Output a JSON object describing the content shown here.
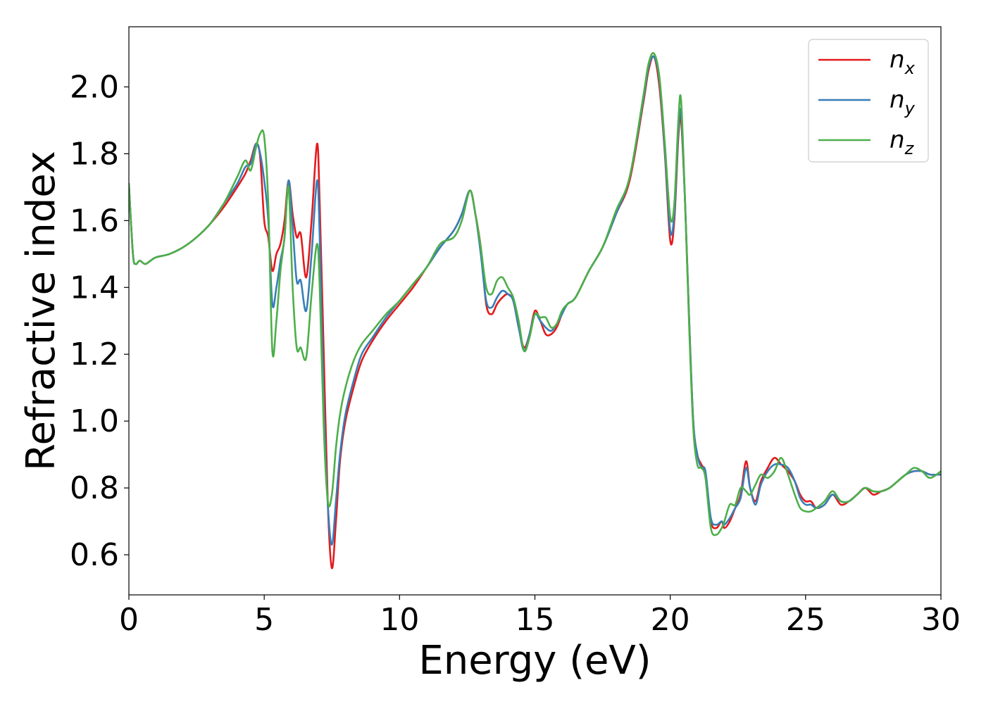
{
  "chart_data": {
    "type": "line",
    "xlabel": "Energy (eV)",
    "ylabel": "Refractive index",
    "xlim": [
      0,
      30
    ],
    "ylim": [
      0.48,
      2.18
    ],
    "xticks": [
      0,
      5,
      10,
      15,
      20,
      25,
      30
    ],
    "xtick_labels": [
      "0",
      "5",
      "10",
      "15",
      "20",
      "25",
      "30"
    ],
    "yticks": [
      0.6,
      0.8,
      1.0,
      1.2,
      1.4,
      1.6,
      1.8,
      2.0
    ],
    "ytick_labels": [
      "0.6",
      "0.8",
      "1.0",
      "1.2",
      "1.4",
      "1.6",
      "1.8",
      "2.0"
    ],
    "grid": false,
    "legend_position": "top-right",
    "series": [
      {
        "name": "n_x",
        "legend_base": "n",
        "legend_sub": "x",
        "color": "#e41a1c",
        "x": [
          0,
          0.15,
          0.25,
          0.4,
          0.6,
          0.8,
          1.0,
          1.5,
          2.0,
          2.5,
          3.0,
          3.5,
          4.0,
          4.3,
          4.5,
          4.7,
          4.85,
          5.0,
          5.15,
          5.3,
          5.45,
          5.6,
          5.75,
          5.9,
          6.05,
          6.2,
          6.35,
          6.55,
          6.75,
          6.95,
          7.05,
          7.2,
          7.35,
          7.5,
          7.65,
          7.8,
          8.0,
          8.3,
          8.6,
          9.0,
          9.5,
          10.0,
          10.5,
          11.0,
          11.5,
          12.0,
          12.3,
          12.6,
          12.8,
          13.0,
          13.2,
          13.4,
          13.6,
          13.8,
          14.0,
          14.2,
          14.4,
          14.6,
          14.8,
          15.0,
          15.2,
          15.4,
          15.6,
          15.8,
          16.0,
          16.2,
          16.5,
          17.0,
          17.5,
          18.0,
          18.5,
          19.0,
          19.2,
          19.4,
          19.6,
          19.8,
          20.0,
          20.15,
          20.3,
          20.4,
          20.55,
          20.7,
          20.85,
          21.0,
          21.15,
          21.3,
          21.5,
          21.7,
          21.9,
          22.0,
          22.2,
          22.4,
          22.6,
          22.8,
          22.95,
          23.15,
          23.35,
          23.6,
          23.85,
          24.1,
          24.35,
          24.6,
          24.8,
          25.0,
          25.2,
          25.4,
          25.7,
          26.0,
          26.3,
          26.6,
          26.9,
          27.2,
          27.5,
          27.8,
          28.1,
          28.4,
          28.7,
          29.0,
          29.3,
          29.6,
          30.0
        ],
        "y": [
          1.71,
          1.5,
          1.47,
          1.48,
          1.47,
          1.48,
          1.49,
          1.5,
          1.52,
          1.55,
          1.59,
          1.64,
          1.7,
          1.74,
          1.78,
          1.83,
          1.79,
          1.6,
          1.55,
          1.45,
          1.5,
          1.53,
          1.6,
          1.72,
          1.62,
          1.55,
          1.56,
          1.43,
          1.6,
          1.83,
          1.65,
          1.2,
          0.75,
          0.56,
          0.7,
          0.88,
          1.0,
          1.1,
          1.18,
          1.24,
          1.3,
          1.35,
          1.4,
          1.46,
          1.52,
          1.57,
          1.62,
          1.69,
          1.62,
          1.52,
          1.35,
          1.32,
          1.35,
          1.37,
          1.38,
          1.36,
          1.28,
          1.22,
          1.26,
          1.33,
          1.3,
          1.26,
          1.26,
          1.28,
          1.32,
          1.35,
          1.37,
          1.45,
          1.52,
          1.62,
          1.72,
          1.95,
          2.05,
          2.09,
          2.0,
          1.8,
          1.54,
          1.6,
          1.85,
          1.9,
          1.65,
          1.3,
          1.0,
          0.9,
          0.87,
          0.84,
          0.7,
          0.68,
          0.7,
          0.68,
          0.7,
          0.74,
          0.78,
          0.88,
          0.8,
          0.76,
          0.82,
          0.86,
          0.89,
          0.87,
          0.85,
          0.82,
          0.78,
          0.76,
          0.76,
          0.74,
          0.75,
          0.78,
          0.75,
          0.76,
          0.78,
          0.8,
          0.78,
          0.79,
          0.8,
          0.82,
          0.84,
          0.85,
          0.85,
          0.84,
          0.84
        ]
      },
      {
        "name": "n_y",
        "legend_base": "n",
        "legend_sub": "y",
        "color": "#377eb8",
        "x": [
          0,
          0.15,
          0.25,
          0.4,
          0.6,
          0.8,
          1.0,
          1.5,
          2.0,
          2.5,
          3.0,
          3.5,
          4.0,
          4.3,
          4.5,
          4.7,
          4.85,
          5.0,
          5.15,
          5.3,
          5.45,
          5.6,
          5.75,
          5.9,
          6.05,
          6.2,
          6.35,
          6.55,
          6.75,
          6.95,
          7.05,
          7.2,
          7.35,
          7.5,
          7.65,
          7.8,
          8.0,
          8.3,
          8.6,
          9.0,
          9.5,
          10.0,
          10.5,
          11.0,
          11.5,
          12.0,
          12.3,
          12.6,
          12.8,
          13.0,
          13.2,
          13.4,
          13.6,
          13.8,
          14.0,
          14.2,
          14.4,
          14.6,
          14.8,
          15.0,
          15.2,
          15.4,
          15.6,
          15.8,
          16.0,
          16.2,
          16.5,
          17.0,
          17.5,
          18.0,
          18.5,
          19.0,
          19.2,
          19.4,
          19.6,
          19.8,
          20.0,
          20.15,
          20.3,
          20.4,
          20.55,
          20.7,
          20.85,
          21.0,
          21.15,
          21.3,
          21.5,
          21.7,
          21.9,
          22.0,
          22.2,
          22.4,
          22.6,
          22.8,
          22.95,
          23.15,
          23.35,
          23.6,
          23.85,
          24.1,
          24.35,
          24.6,
          24.8,
          25.0,
          25.2,
          25.4,
          25.7,
          26.0,
          26.3,
          26.6,
          26.9,
          27.2,
          27.5,
          27.8,
          28.1,
          28.4,
          28.7,
          29.0,
          29.3,
          29.6,
          30.0
        ],
        "y": [
          1.71,
          1.5,
          1.47,
          1.48,
          1.47,
          1.48,
          1.49,
          1.5,
          1.52,
          1.55,
          1.59,
          1.65,
          1.71,
          1.76,
          1.77,
          1.83,
          1.8,
          1.72,
          1.6,
          1.35,
          1.4,
          1.48,
          1.55,
          1.72,
          1.58,
          1.42,
          1.42,
          1.33,
          1.5,
          1.72,
          1.55,
          1.05,
          0.75,
          0.63,
          0.76,
          0.9,
          1.02,
          1.12,
          1.2,
          1.25,
          1.31,
          1.36,
          1.41,
          1.46,
          1.52,
          1.57,
          1.62,
          1.69,
          1.62,
          1.5,
          1.36,
          1.34,
          1.37,
          1.39,
          1.38,
          1.36,
          1.28,
          1.21,
          1.26,
          1.32,
          1.3,
          1.28,
          1.27,
          1.29,
          1.32,
          1.35,
          1.37,
          1.45,
          1.52,
          1.62,
          1.73,
          1.96,
          2.06,
          2.09,
          2.02,
          1.81,
          1.57,
          1.62,
          1.87,
          1.92,
          1.65,
          1.3,
          1.0,
          0.9,
          0.86,
          0.85,
          0.71,
          0.69,
          0.7,
          0.69,
          0.71,
          0.74,
          0.77,
          0.86,
          0.8,
          0.75,
          0.81,
          0.85,
          0.87,
          0.87,
          0.86,
          0.82,
          0.77,
          0.75,
          0.75,
          0.74,
          0.75,
          0.78,
          0.76,
          0.76,
          0.78,
          0.8,
          0.79,
          0.79,
          0.8,
          0.82,
          0.84,
          0.85,
          0.85,
          0.84,
          0.84
        ]
      },
      {
        "name": "n_z",
        "legend_base": "n",
        "legend_sub": "z",
        "color": "#4daf4a",
        "x": [
          0,
          0.15,
          0.25,
          0.4,
          0.6,
          0.8,
          1.0,
          1.5,
          2.0,
          2.5,
          3.0,
          3.5,
          4.0,
          4.3,
          4.5,
          4.7,
          4.85,
          5.0,
          5.15,
          5.3,
          5.45,
          5.6,
          5.75,
          5.9,
          6.05,
          6.2,
          6.35,
          6.55,
          6.75,
          6.95,
          7.05,
          7.2,
          7.35,
          7.5,
          7.65,
          7.8,
          8.0,
          8.3,
          8.6,
          9.0,
          9.5,
          10.0,
          10.5,
          11.0,
          11.5,
          12.0,
          12.3,
          12.6,
          12.8,
          13.0,
          13.2,
          13.4,
          13.6,
          13.8,
          14.0,
          14.2,
          14.4,
          14.6,
          14.8,
          15.0,
          15.2,
          15.4,
          15.6,
          15.8,
          16.0,
          16.2,
          16.5,
          17.0,
          17.5,
          18.0,
          18.5,
          19.0,
          19.2,
          19.4,
          19.6,
          19.8,
          20.0,
          20.15,
          20.3,
          20.4,
          20.55,
          20.7,
          20.85,
          21.0,
          21.15,
          21.3,
          21.5,
          21.7,
          21.9,
          22.0,
          22.2,
          22.4,
          22.6,
          22.8,
          22.95,
          23.15,
          23.35,
          23.6,
          23.85,
          24.1,
          24.35,
          24.6,
          24.8,
          25.0,
          25.2,
          25.4,
          25.7,
          26.0,
          26.3,
          26.6,
          26.9,
          27.2,
          27.5,
          27.8,
          28.1,
          28.4,
          28.7,
          29.0,
          29.3,
          29.6,
          30.0
        ],
        "y": [
          1.71,
          1.5,
          1.47,
          1.48,
          1.47,
          1.48,
          1.49,
          1.5,
          1.52,
          1.55,
          1.59,
          1.65,
          1.73,
          1.78,
          1.75,
          1.82,
          1.86,
          1.85,
          1.65,
          1.21,
          1.3,
          1.45,
          1.55,
          1.7,
          1.4,
          1.22,
          1.22,
          1.19,
          1.38,
          1.53,
          1.4,
          0.98,
          0.76,
          0.78,
          0.92,
          1.02,
          1.1,
          1.18,
          1.23,
          1.27,
          1.32,
          1.36,
          1.41,
          1.46,
          1.53,
          1.55,
          1.6,
          1.69,
          1.62,
          1.52,
          1.4,
          1.38,
          1.42,
          1.43,
          1.4,
          1.37,
          1.3,
          1.21,
          1.25,
          1.32,
          1.31,
          1.31,
          1.28,
          1.29,
          1.33,
          1.35,
          1.37,
          1.45,
          1.52,
          1.63,
          1.73,
          1.97,
          2.07,
          2.1,
          2.03,
          1.83,
          1.61,
          1.65,
          1.9,
          1.96,
          1.65,
          1.28,
          0.98,
          0.87,
          0.86,
          0.83,
          0.68,
          0.66,
          0.68,
          0.7,
          0.75,
          0.75,
          0.8,
          0.79,
          0.78,
          0.81,
          0.84,
          0.83,
          0.85,
          0.89,
          0.84,
          0.78,
          0.74,
          0.73,
          0.73,
          0.74,
          0.76,
          0.79,
          0.76,
          0.76,
          0.78,
          0.8,
          0.79,
          0.79,
          0.8,
          0.82,
          0.84,
          0.86,
          0.85,
          0.83,
          0.85
        ]
      }
    ]
  }
}
